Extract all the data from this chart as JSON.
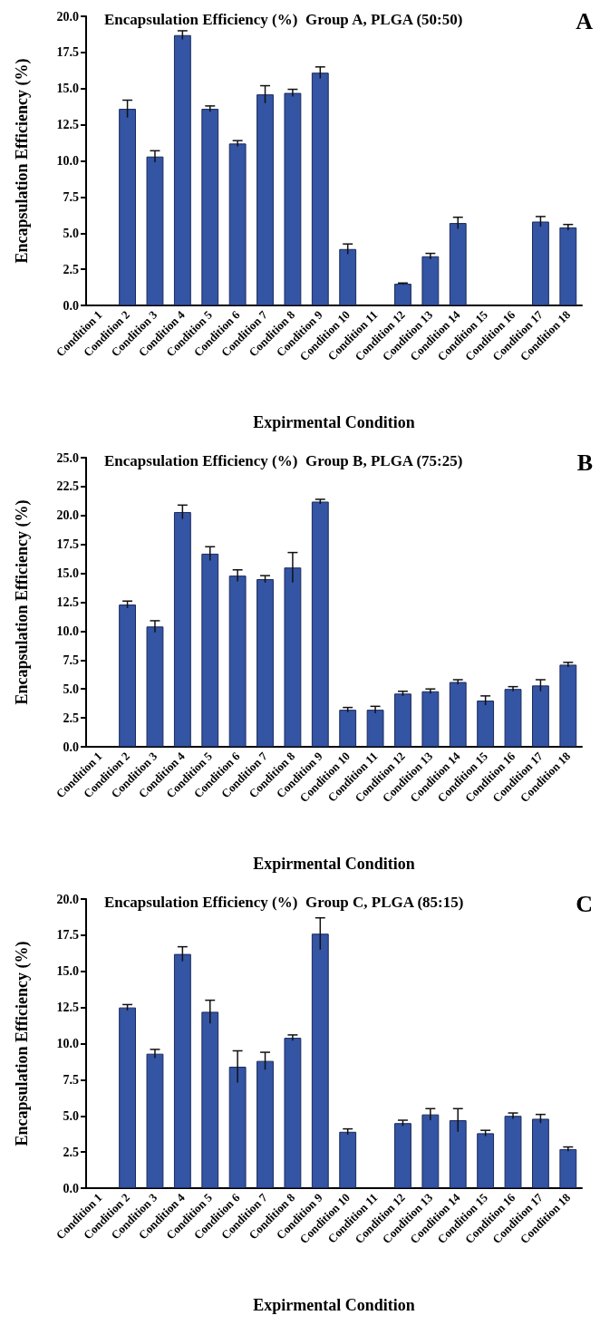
{
  "chart_data": [
    {
      "type": "bar",
      "title": "Encapsulation Efficiency (%)  Group A, PLGA (50:50)",
      "xlabel": "Expirmental Condition",
      "ylabel": "Encapsulation Efficiency (%)",
      "annotations": [
        "A"
      ],
      "categories": [
        "Condition 1",
        "Condition 2",
        "Condition 3",
        "Condition 4",
        "Condition 5",
        "Condition 6",
        "Condition 7",
        "Condition 8",
        "Condition 9",
        "Condition 10",
        "Condition 11",
        "Condition 12",
        "Condition 13",
        "Condition 14",
        "Condition 15",
        "Condition 16",
        "Condition 17",
        "Condition 18"
      ],
      "values": [
        0,
        13.6,
        10.3,
        18.7,
        13.6,
        11.2,
        14.6,
        14.7,
        16.1,
        3.9,
        0,
        1.5,
        3.4,
        5.7,
        0,
        0,
        5.8,
        5.4
      ],
      "errors": [
        null,
        0.6,
        0.4,
        0.3,
        0.2,
        0.2,
        0.6,
        0.25,
        0.4,
        0.35,
        null,
        0.05,
        0.2,
        0.4,
        null,
        null,
        0.35,
        0.2
      ],
      "color": "#3454a4",
      "ylim": [
        0,
        20
      ],
      "yticks": [
        {
          "value": 0,
          "label": "0.0"
        },
        {
          "value": 2.5,
          "label": "2.5"
        },
        {
          "value": 5,
          "label": "5.0"
        },
        {
          "value": 7.5,
          "label": "7.5"
        },
        {
          "value": 10,
          "label": "10.0"
        },
        {
          "value": 12.5,
          "label": "12.5"
        },
        {
          "value": 15,
          "label": "15.0"
        },
        {
          "value": 17.5,
          "label": "17.5"
        },
        {
          "value": 20,
          "label": "20.0"
        }
      ],
      "grid": false
    },
    {
      "type": "bar",
      "title": "Encapsulation Efficiency (%)  Group B, PLGA (75:25)",
      "xlabel": "Expirmental Condition",
      "ylabel": "Encapsulation Efficiency (%)",
      "annotations": [
        "B"
      ],
      "categories": [
        "Condition 1",
        "Condition 2",
        "Condition 3",
        "Condition 4",
        "Condition 5",
        "Condition 6",
        "Condition 7",
        "Condition 8",
        "Condition 9",
        "Condition 10",
        "Condition 11",
        "Condition 12",
        "Condition 13",
        "Condition 14",
        "Condition 15",
        "Condition 16",
        "Condition 17",
        "Condition 18"
      ],
      "values": [
        0,
        12.3,
        10.4,
        20.3,
        16.7,
        14.8,
        14.5,
        15.5,
        21.2,
        3.2,
        3.2,
        4.6,
        4.8,
        5.6,
        4.0,
        5.0,
        5.3,
        7.1
      ],
      "errors": [
        null,
        0.3,
        0.5,
        0.6,
        0.6,
        0.5,
        0.3,
        1.3,
        0.2,
        0.2,
        0.3,
        0.2,
        0.2,
        0.2,
        0.4,
        0.2,
        0.5,
        0.2
      ],
      "color": "#3454a4",
      "ylim": [
        0,
        25
      ],
      "yticks": [
        {
          "value": 0,
          "label": "0.0"
        },
        {
          "value": 2.5,
          "label": "2.5"
        },
        {
          "value": 5,
          "label": "5.0"
        },
        {
          "value": 7.5,
          "label": "7.5"
        },
        {
          "value": 10,
          "label": "10.0"
        },
        {
          "value": 12.5,
          "label": "12.5"
        },
        {
          "value": 15,
          "label": "15.0"
        },
        {
          "value": 17.5,
          "label": "17.5"
        },
        {
          "value": 20,
          "label": "20.0"
        },
        {
          "value": 22.5,
          "label": "22.5"
        },
        {
          "value": 25,
          "label": "25.0"
        }
      ],
      "grid": false
    },
    {
      "type": "bar",
      "title": "Encapsulation Efficiency (%)  Group C, PLGA (85:15)",
      "xlabel": "Expirmental Condition",
      "ylabel": "Encapsulation Efficiency (%)",
      "annotations": [
        "C"
      ],
      "categories": [
        "Condition 1",
        "Condition 2",
        "Condition 3",
        "Condition 4",
        "Condition 5",
        "Condition 6",
        "Condition 7",
        "Condition 8",
        "Condition 9",
        "Condition 10",
        "Condition 11",
        "Condition 12",
        "Condition 13",
        "Condition 14",
        "Condition 15",
        "Condition 16",
        "Condition 17",
        "Condition 18"
      ],
      "values": [
        0,
        12.5,
        9.3,
        16.2,
        12.2,
        8.4,
        8.8,
        10.4,
        17.6,
        3.9,
        0,
        4.5,
        5.1,
        4.7,
        3.8,
        5.0,
        4.8,
        2.7
      ],
      "errors": [
        null,
        0.2,
        0.3,
        0.5,
        0.8,
        1.1,
        0.6,
        0.2,
        1.1,
        0.2,
        null,
        0.2,
        0.4,
        0.8,
        0.2,
        0.2,
        0.3,
        0.15
      ],
      "color": "#3454a4",
      "ylim": [
        0,
        20
      ],
      "yticks": [
        {
          "value": 0,
          "label": "0.0"
        },
        {
          "value": 2.5,
          "label": "2.5"
        },
        {
          "value": 5,
          "label": "5.0"
        },
        {
          "value": 7.5,
          "label": "7.5"
        },
        {
          "value": 10,
          "label": "10.0"
        },
        {
          "value": 12.5,
          "label": "12.5"
        },
        {
          "value": 15,
          "label": "15.0"
        },
        {
          "value": 17.5,
          "label": "17.5"
        },
        {
          "value": 20,
          "label": "20.0"
        }
      ],
      "grid": false
    }
  ]
}
